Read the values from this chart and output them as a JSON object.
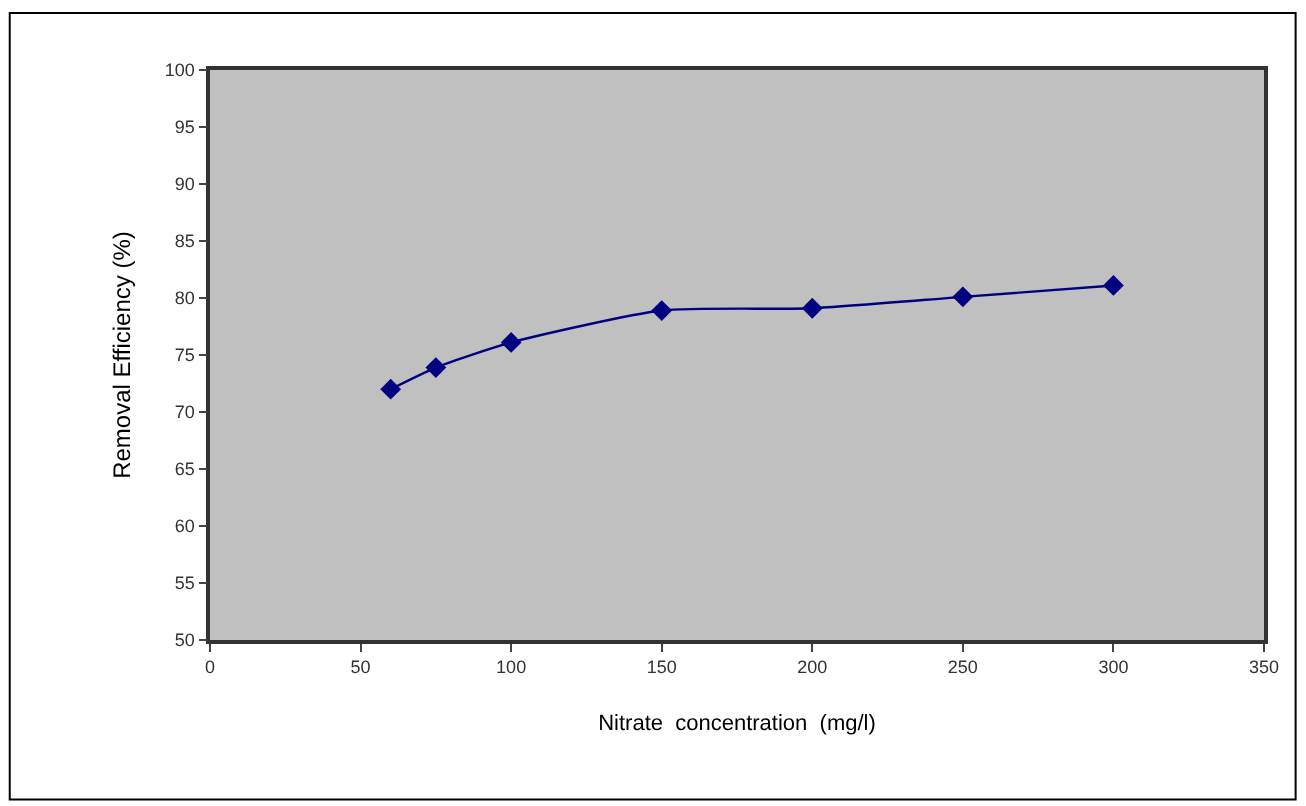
{
  "chart_data": {
    "type": "line",
    "xlabel": "Nitrate  concentration  (mg/l)",
    "ylabel": "Removal Efficiency (%)",
    "x": [
      60,
      75,
      100,
      150,
      200,
      250,
      300
    ],
    "series": [
      {
        "color": "#000080",
        "values": [
          72.0,
          73.9,
          76.1,
          78.9,
          79.1,
          80.1,
          81.1
        ]
      }
    ],
    "xlim": [
      0,
      350
    ],
    "xticks": [
      0,
      50,
      100,
      150,
      200,
      250,
      300,
      350
    ],
    "ylim": [
      50,
      100
    ],
    "yticks": [
      50,
      55,
      60,
      65,
      70,
      75,
      80,
      85,
      90,
      95,
      100
    ],
    "grid": false,
    "marker": "diamond",
    "line_style": "solid"
  }
}
